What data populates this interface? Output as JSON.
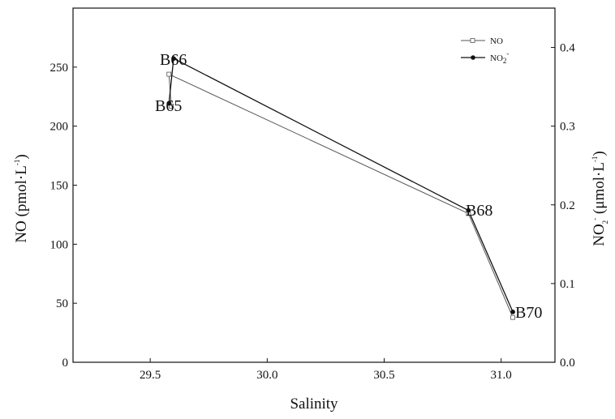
{
  "chart_data": {
    "type": "line",
    "title": "",
    "xlabel": "Salinity",
    "ylabel_left": "NO (pmol·L",
    "ylabel_left_sup": "-1",
    "ylabel_left_end": ")",
    "ylabel_right_pre": "NO",
    "ylabel_right_sub": "2",
    "ylabel_right_sup1": "-",
    "ylabel_right_mid": " (μmol·L",
    "ylabel_right_sup2": "-1",
    "ylabel_right_end": ")",
    "xlim": [
      29.17,
      31.23
    ],
    "ylim_left": [
      0,
      300
    ],
    "ylim_right": [
      0.0,
      0.45
    ],
    "x_ticks": [
      29.5,
      30.0,
      30.5,
      31.0
    ],
    "x_tick_labels": [
      "29.5",
      "30.0",
      "30.5",
      "31.0"
    ],
    "y_left_ticks": [
      0,
      50,
      100,
      150,
      200,
      250
    ],
    "y_left_tick_labels": [
      "0",
      "50",
      "100",
      "150",
      "200",
      "250"
    ],
    "y_right_ticks": [
      0.0,
      0.1,
      0.2,
      0.3,
      0.4
    ],
    "y_right_tick_labels": [
      "0.0",
      "0.1",
      "0.2",
      "0.3",
      "0.4"
    ],
    "grid": false,
    "legend_position": "top-right",
    "series": [
      {
        "name": "NO",
        "axis": "left",
        "color": "#555555",
        "marker": "open-square",
        "points": [
          {
            "x": 29.59,
            "y": 217
          },
          {
            "x": 29.58,
            "y": 244
          },
          {
            "x": 30.86,
            "y": 126
          },
          {
            "x": 31.05,
            "y": 38
          }
        ]
      },
      {
        "name_pre": "NO",
        "name_sub": "2",
        "name_sup": "-",
        "axis": "right",
        "color": "#111111",
        "marker": "filled-circle",
        "points": [
          {
            "x": 29.58,
            "y": 0.329
          },
          {
            "x": 29.6,
            "y": 0.386
          },
          {
            "x": 30.86,
            "y": 0.193
          },
          {
            "x": 31.05,
            "y": 0.064
          }
        ]
      }
    ],
    "annotations": [
      "B66",
      "B65",
      "B68",
      "B70"
    ]
  }
}
